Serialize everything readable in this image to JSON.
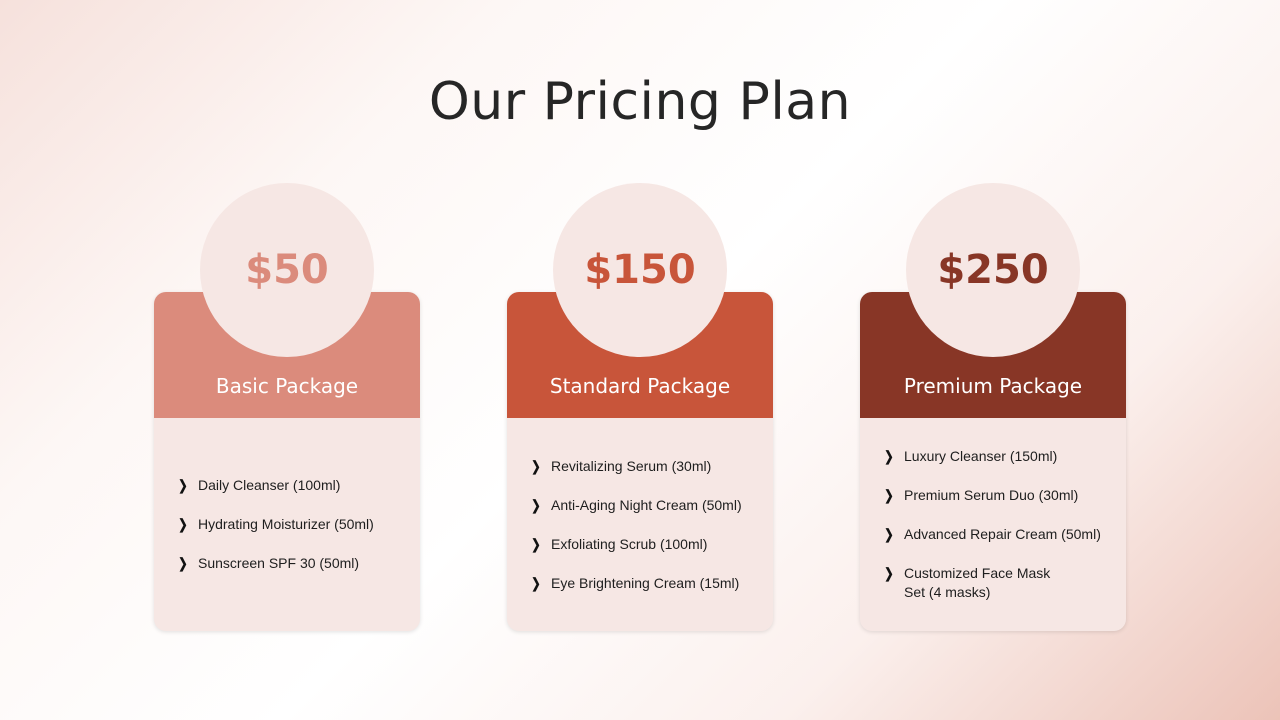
{
  "title": "Our Pricing Plan",
  "plans": [
    {
      "price": "$50",
      "name": "Basic Package",
      "color": "#db8b7c",
      "items": [
        "Daily Cleanser (100ml)",
        "Hydrating Moisturizer (50ml)",
        "Sunscreen SPF 30 (50ml)"
      ]
    },
    {
      "price": "$150",
      "name": "Standard Package",
      "color": "#c8553a",
      "items": [
        "Revitalizing Serum (30ml)",
        "Anti-Aging Night Cream (50ml)",
        "Exfoliating Scrub (100ml)",
        "Eye Brightening Cream (15ml)"
      ]
    },
    {
      "price": "$250",
      "name": "Premium Package",
      "color": "#883626",
      "items": [
        "Luxury Cleanser (150ml)",
        "Premium Serum Duo (30ml)",
        "Advanced Repair Cream (50ml)",
        "Customized Face Mask Set (4 masks)"
      ]
    }
  ],
  "bullet_icon": "chevron-right-icon"
}
